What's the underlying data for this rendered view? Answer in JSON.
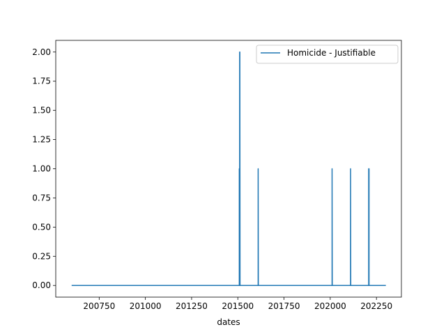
{
  "chart_data": {
    "type": "line",
    "title": "",
    "xlabel": "dates",
    "ylabel": "",
    "xlim": [
      200515,
      202385
    ],
    "ylim": [
      -0.1,
      2.1
    ],
    "xticks": [
      200750,
      201000,
      201250,
      201500,
      201750,
      202000,
      202250
    ],
    "xtick_labels": [
      "200750",
      "201000",
      "201250",
      "201500",
      "201750",
      "202000",
      "202250"
    ],
    "yticks": [
      0.0,
      0.25,
      0.5,
      0.75,
      1.0,
      1.25,
      1.5,
      1.75,
      2.0
    ],
    "ytick_labels": [
      "0.00",
      "0.25",
      "0.50",
      "0.75",
      "1.00",
      "1.25",
      "1.50",
      "1.75",
      "2.00"
    ],
    "grid": false,
    "legend_position": "top-right",
    "colors": {
      "series": "#1f77b4"
    },
    "series": [
      {
        "name": "Homicide - Justifiable",
        "x": [
          200601,
          201508,
          201508,
          201509,
          201510,
          201510,
          201511,
          201512,
          201512,
          201610,
          201610,
          201611,
          202010,
          202010,
          202011,
          202110,
          202110,
          202111,
          202208,
          202208,
          202209,
          202210,
          202210,
          202211,
          202301
        ],
        "y": [
          0,
          0,
          1,
          0,
          0,
          2,
          2,
          0,
          0,
          0,
          1,
          0,
          0,
          1,
          0,
          0,
          1,
          0,
          0,
          1,
          1,
          1,
          0,
          0,
          0
        ]
      }
    ]
  }
}
